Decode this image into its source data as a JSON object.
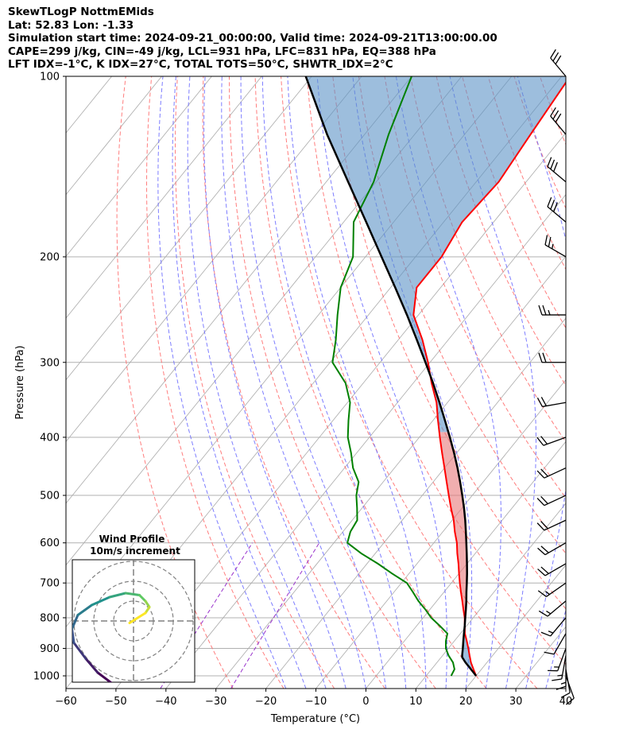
{
  "header": {
    "line1": "SkewTLogP NottmEMids",
    "line2": "Lat: 52.83   Lon: -1.33",
    "line3": "Simulation start time: 2024-09-21_00:00:00, Valid time: 2024-09-21T13:00:00.00",
    "line4": "CAPE=299 j/kg, CIN=-49 j/kg, LCL=931 hPa, LFC=831 hPa, EQ=388 hPa",
    "line5": "LFT IDX=-1°C, K IDX=27°C, TOTAL TOTS=50°C, SHWTR_IDX=2°C"
  },
  "chart_data": {
    "type": "line",
    "title": "SkewTLogP NottmEMids",
    "xlabel": "Temperature (°C)",
    "ylabel": "Pressure (hPa)",
    "xlim": [
      -60,
      40
    ],
    "ylim": [
      1050,
      100
    ],
    "y_scale": "log",
    "skew": true,
    "grid": true,
    "x_ticks": [
      -60,
      -50,
      -40,
      -30,
      -20,
      -10,
      0,
      10,
      20,
      30,
      40
    ],
    "x_tick_labels": [
      "−60",
      "−50",
      "−40",
      "−30",
      "−20",
      "−10",
      "0",
      "10",
      "20",
      "30",
      "40"
    ],
    "y_ticks": [
      1000,
      900,
      800,
      700,
      600,
      500,
      400,
      300,
      200,
      100
    ],
    "y_tick_labels": [
      "1000",
      "900",
      "800",
      "700",
      "600",
      "500",
      "400",
      "300",
      "200",
      "100"
    ],
    "colors": {
      "temperature": "#ff0000",
      "dewpoint": "#008000",
      "parcel": "#000000",
      "cape_fill": "#e8787a",
      "cin_fill": "#5b93c7",
      "dry_adiabat": "#ff6666",
      "moist_adiabat": "#6666ff",
      "mixing_ratio": "#9933cc",
      "isotherm": "#aaaaaa"
    },
    "temperature": {
      "pressure": [
        1000,
        975,
        950,
        925,
        900,
        875,
        850,
        825,
        800,
        775,
        750,
        725,
        700,
        675,
        650,
        625,
        600,
        575,
        550,
        525,
        500,
        475,
        450,
        425,
        400,
        375,
        350,
        325,
        300,
        275,
        250,
        225,
        200,
        175,
        150,
        125,
        100
      ],
      "values": [
        20.0,
        18.4,
        16.8,
        15.4,
        14.0,
        12.5,
        10.9,
        9.6,
        8.3,
        6.7,
        5.1,
        3.4,
        1.7,
        0.0,
        -1.7,
        -3.6,
        -5.4,
        -7.6,
        -9.7,
        -12.2,
        -14.7,
        -17.3,
        -20.0,
        -22.9,
        -25.9,
        -29.0,
        -32.2,
        -36.3,
        -40.4,
        -45.2,
        -51.0,
        -54.8,
        -54.8,
        -56.3,
        -55.5,
        -56.8,
        -58.3
      ]
    },
    "dewpoint": {
      "pressure": [
        1000,
        975,
        950,
        925,
        900,
        875,
        850,
        825,
        800,
        775,
        750,
        725,
        700,
        675,
        650,
        625,
        600,
        575,
        550,
        525,
        500,
        475,
        450,
        425,
        400,
        375,
        350,
        325,
        300,
        275,
        250,
        225,
        200,
        175,
        150,
        125,
        100
      ],
      "values": [
        15.0,
        14.6,
        13.2,
        11.2,
        9.5,
        8.3,
        7.4,
        4.6,
        1.6,
        -0.9,
        -3.7,
        -6.2,
        -8.9,
        -13.4,
        -17.8,
        -22.8,
        -27.3,
        -28.5,
        -29.0,
        -31.0,
        -33.2,
        -34.9,
        -38.3,
        -41.1,
        -44.3,
        -46.9,
        -49.5,
        -53.5,
        -59.5,
        -62.5,
        -66.2,
        -70.0,
        -72.5,
        -78.0,
        -80.5,
        -85.2,
        -90.0
      ]
    },
    "parcel": {
      "pressure": [
        1000,
        975,
        950,
        931,
        925,
        900,
        875,
        850,
        825,
        800,
        775,
        750,
        725,
        700,
        675,
        650,
        625,
        600,
        575,
        550,
        525,
        500,
        475,
        450,
        425,
        400,
        375,
        350,
        325,
        300,
        275,
        250,
        225,
        200,
        175,
        150,
        125,
        100
      ],
      "values": [
        20.0,
        17.9,
        15.7,
        14.2,
        13.9,
        12.9,
        11.8,
        10.7,
        9.6,
        8.4,
        7.2,
        5.9,
        4.5,
        3.1,
        1.6,
        0.0,
        -1.7,
        -3.5,
        -5.4,
        -7.4,
        -9.6,
        -12.0,
        -14.6,
        -17.4,
        -20.5,
        -23.9,
        -27.6,
        -31.6,
        -36.0,
        -40.9,
        -46.3,
        -52.3,
        -59.1,
        -66.8,
        -75.5,
        -85.6,
        -97.5,
        -111.2
      ]
    },
    "wind_barbs": {
      "pressure": [
        1000,
        975,
        950,
        925,
        900,
        850,
        800,
        750,
        700,
        650,
        600,
        550,
        500,
        450,
        400,
        350,
        300,
        250,
        200,
        175,
        150,
        125,
        100
      ],
      "speed_kt": [
        10,
        12,
        15,
        18,
        15,
        14,
        15,
        17,
        17,
        20,
        20,
        20,
        20,
        20,
        20,
        20,
        22,
        25,
        25,
        30,
        30,
        30,
        30
      ],
      "direction_deg": [
        160,
        170,
        180,
        190,
        200,
        210,
        220,
        230,
        235,
        240,
        240,
        245,
        245,
        245,
        250,
        260,
        270,
        270,
        300,
        310,
        310,
        320,
        320
      ]
    },
    "hodograph": {
      "title": "Wind Profile",
      "subtitle": "10m/s increment",
      "u": [
        -1.0,
        -1.8,
        -2.4,
        -3.0,
        -3.1,
        -2.8,
        -2.1,
        -1.2,
        -0.4,
        0.3,
        0.6,
        0.8,
        0.6,
        -0.2
      ],
      "v": [
        -3.2,
        -2.6,
        -1.9,
        -1.1,
        -0.4,
        0.3,
        0.8,
        1.2,
        1.4,
        1.3,
        1.0,
        0.7,
        0.4,
        -0.1
      ]
    }
  }
}
